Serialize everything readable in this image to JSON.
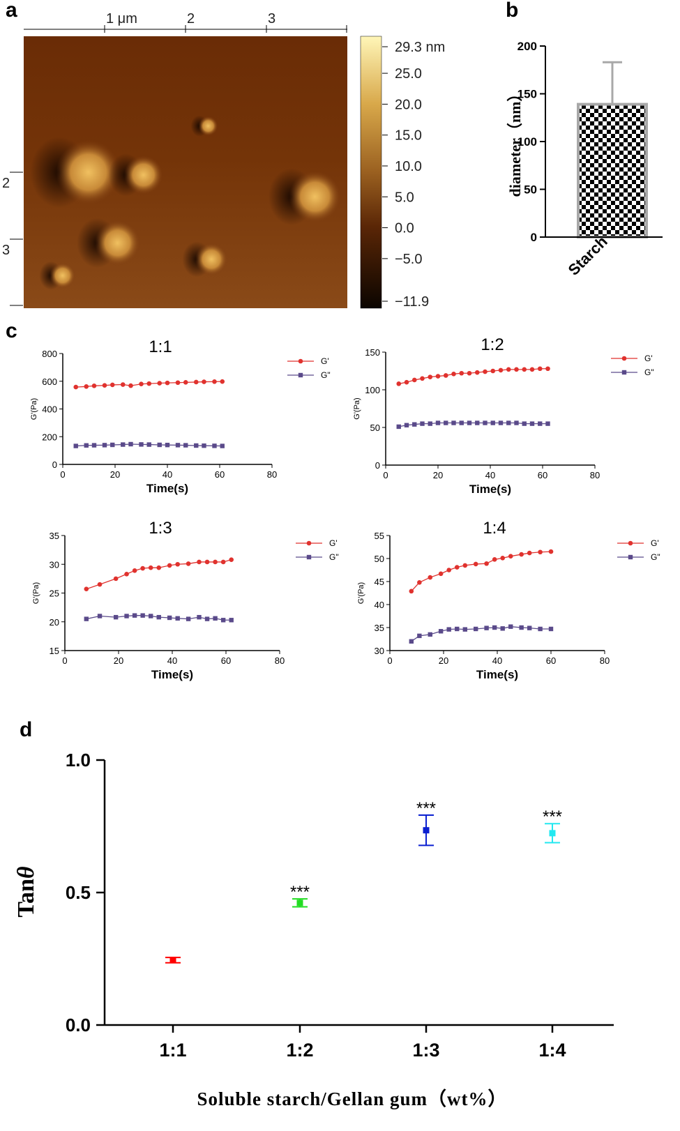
{
  "panel_labels": {
    "a": "a",
    "b": "b",
    "c": "c",
    "d": "d"
  },
  "colors": {
    "gprime": "#e0322e",
    "gdouble": "#5a4a8a",
    "bar_outline": "#a8a8a8",
    "d_points": [
      "#ff0000",
      "#22dd22",
      "#0a1fd0",
      "#22e8f0"
    ]
  },
  "chart_data": [
    {
      "type": "heatmap",
      "panel": "a",
      "top_ticks": [
        "1 μm",
        "2",
        "3"
      ],
      "left_ticks": [
        "2",
        "3"
      ],
      "colorbar": {
        "min": -11.9,
        "max": 29.3,
        "tick_labels": [
          "29.3 nm",
          "25.0",
          "20.0",
          "15.0",
          "10.0",
          "5.0",
          "0.0",
          "−5.0",
          "−11.9"
        ],
        "tick_values": [
          29.3,
          25.0,
          20.0,
          15.0,
          10.0,
          5.0,
          0.0,
          -5.0,
          -11.9
        ]
      },
      "features": [
        {
          "x": 0.2,
          "y": 0.5,
          "r": 0.1
        },
        {
          "x": 0.37,
          "y": 0.51,
          "r": 0.06
        },
        {
          "x": 0.9,
          "y": 0.59,
          "r": 0.08
        },
        {
          "x": 0.29,
          "y": 0.76,
          "r": 0.07
        },
        {
          "x": 0.58,
          "y": 0.82,
          "r": 0.05
        },
        {
          "x": 0.57,
          "y": 0.33,
          "r": 0.03
        },
        {
          "x": 0.12,
          "y": 0.88,
          "r": 0.04
        }
      ]
    },
    {
      "type": "bar",
      "panel": "b",
      "categories": [
        "Starch"
      ],
      "values": [
        139
      ],
      "error": [
        44
      ],
      "ylabel": "diameter（nm）",
      "ylim": [
        0,
        200
      ],
      "yticks": [
        0,
        50,
        100,
        150,
        200
      ]
    },
    {
      "type": "line",
      "panel": "c",
      "title": "1:1",
      "xlabel": "Time(s)",
      "ylabel": "G'(Pa)",
      "xlim": [
        0,
        80
      ],
      "ylim": [
        0,
        800
      ],
      "xticks": [
        0,
        20,
        40,
        60,
        80
      ],
      "yticks": [
        0,
        200,
        400,
        600,
        800
      ],
      "legend": [
        "G'",
        "G\""
      ],
      "x": [
        5,
        9,
        12,
        16,
        19,
        23,
        26,
        30,
        33,
        37,
        40,
        44,
        47,
        51,
        54,
        58,
        61
      ],
      "series": [
        {
          "name": "G'",
          "values": [
            558,
            562,
            567,
            570,
            574,
            576,
            568,
            580,
            583,
            586,
            588,
            590,
            592,
            594,
            596,
            597,
            598
          ]
        },
        {
          "name": "G\"",
          "values": [
            133,
            137,
            138,
            139,
            141,
            143,
            146,
            144,
            143,
            141,
            140,
            139,
            138,
            136,
            135,
            134,
            133
          ]
        }
      ]
    },
    {
      "type": "line",
      "panel": "c",
      "title": "1:2",
      "xlabel": "Time(s)",
      "ylabel": "G'(Pa)",
      "xlim": [
        0,
        80
      ],
      "ylim": [
        0,
        150
      ],
      "xticks": [
        0,
        20,
        40,
        60,
        80
      ],
      "yticks": [
        0,
        50,
        100,
        150
      ],
      "legend": [
        "G'",
        "G\""
      ],
      "x": [
        5,
        8,
        11,
        14,
        17,
        20,
        23,
        26,
        29,
        32,
        35,
        38,
        41,
        44,
        47,
        50,
        53,
        56,
        59,
        62
      ],
      "series": [
        {
          "name": "G'",
          "values": [
            108,
            110,
            113,
            115,
            117,
            118,
            119,
            121,
            122,
            122,
            123,
            124,
            125,
            126,
            127,
            127,
            127,
            127,
            128,
            128
          ]
        },
        {
          "name": "G\"",
          "values": [
            51,
            53,
            54,
            55,
            55,
            56,
            56,
            56,
            56,
            56,
            56,
            56,
            56,
            56,
            56,
            56,
            55,
            55,
            55,
            55
          ]
        }
      ]
    },
    {
      "type": "line",
      "panel": "c",
      "title": "1:3",
      "xlabel": "Time(s)",
      "ylabel": "G'(Pa)",
      "xlim": [
        0,
        80
      ],
      "ylim": [
        15,
        35
      ],
      "xticks": [
        0,
        20,
        40,
        60,
        80
      ],
      "yticks": [
        15,
        20,
        25,
        30,
        35
      ],
      "legend": [
        "G'",
        "G\""
      ],
      "x": [
        8,
        13,
        19,
        23,
        26,
        29,
        32,
        35,
        39,
        42,
        46,
        50,
        53,
        56,
        59,
        62
      ],
      "series": [
        {
          "name": "G'",
          "values": [
            25.7,
            26.5,
            27.5,
            28.3,
            28.9,
            29.3,
            29.4,
            29.4,
            29.8,
            30.0,
            30.1,
            30.4,
            30.4,
            30.4,
            30.4,
            30.8
          ]
        },
        {
          "name": "G\"",
          "values": [
            20.5,
            21.0,
            20.8,
            21.0,
            21.1,
            21.1,
            21.0,
            20.8,
            20.7,
            20.6,
            20.5,
            20.8,
            20.5,
            20.6,
            20.3,
            20.3
          ]
        }
      ]
    },
    {
      "type": "line",
      "panel": "c",
      "title": "1:4",
      "xlabel": "Time(s)",
      "ylabel": "G'(Pa)",
      "xlim": [
        0,
        80
      ],
      "ylim": [
        30,
        55
      ],
      "xticks": [
        0,
        20,
        40,
        60,
        80
      ],
      "yticks": [
        30,
        35,
        40,
        45,
        50,
        55
      ],
      "legend": [
        "G'",
        "G\""
      ],
      "x": [
        8,
        11,
        15,
        19,
        22,
        25,
        28,
        32,
        36,
        39,
        42,
        45,
        49,
        52,
        56,
        60
      ],
      "series": [
        {
          "name": "G'",
          "values": [
            42.9,
            44.8,
            45.9,
            46.7,
            47.5,
            48.1,
            48.5,
            48.8,
            48.9,
            49.8,
            50.1,
            50.5,
            50.9,
            51.2,
            51.4,
            51.5
          ]
        },
        {
          "name": "G\"",
          "values": [
            32.0,
            33.2,
            33.5,
            34.2,
            34.6,
            34.7,
            34.6,
            34.7,
            34.9,
            35.0,
            34.8,
            35.2,
            35.0,
            34.9,
            34.7,
            34.7
          ]
        }
      ]
    },
    {
      "type": "scatter",
      "panel": "d",
      "categories": [
        "1:1",
        "1:2",
        "1:3",
        "1:4"
      ],
      "values": [
        0.245,
        0.461,
        0.735,
        0.724
      ],
      "error": [
        0.01,
        0.015,
        0.057,
        0.036
      ],
      "annotations": [
        "",
        "***",
        "***",
        "***"
      ],
      "xlabel": "Soluble starch/Gellan gum（wt%）",
      "ylabel": "Tan",
      "ylabel_symbol": "θ",
      "ylim": [
        0,
        1.0
      ],
      "yticks": [
        "0.0",
        "0.5",
        "1.0"
      ]
    }
  ]
}
